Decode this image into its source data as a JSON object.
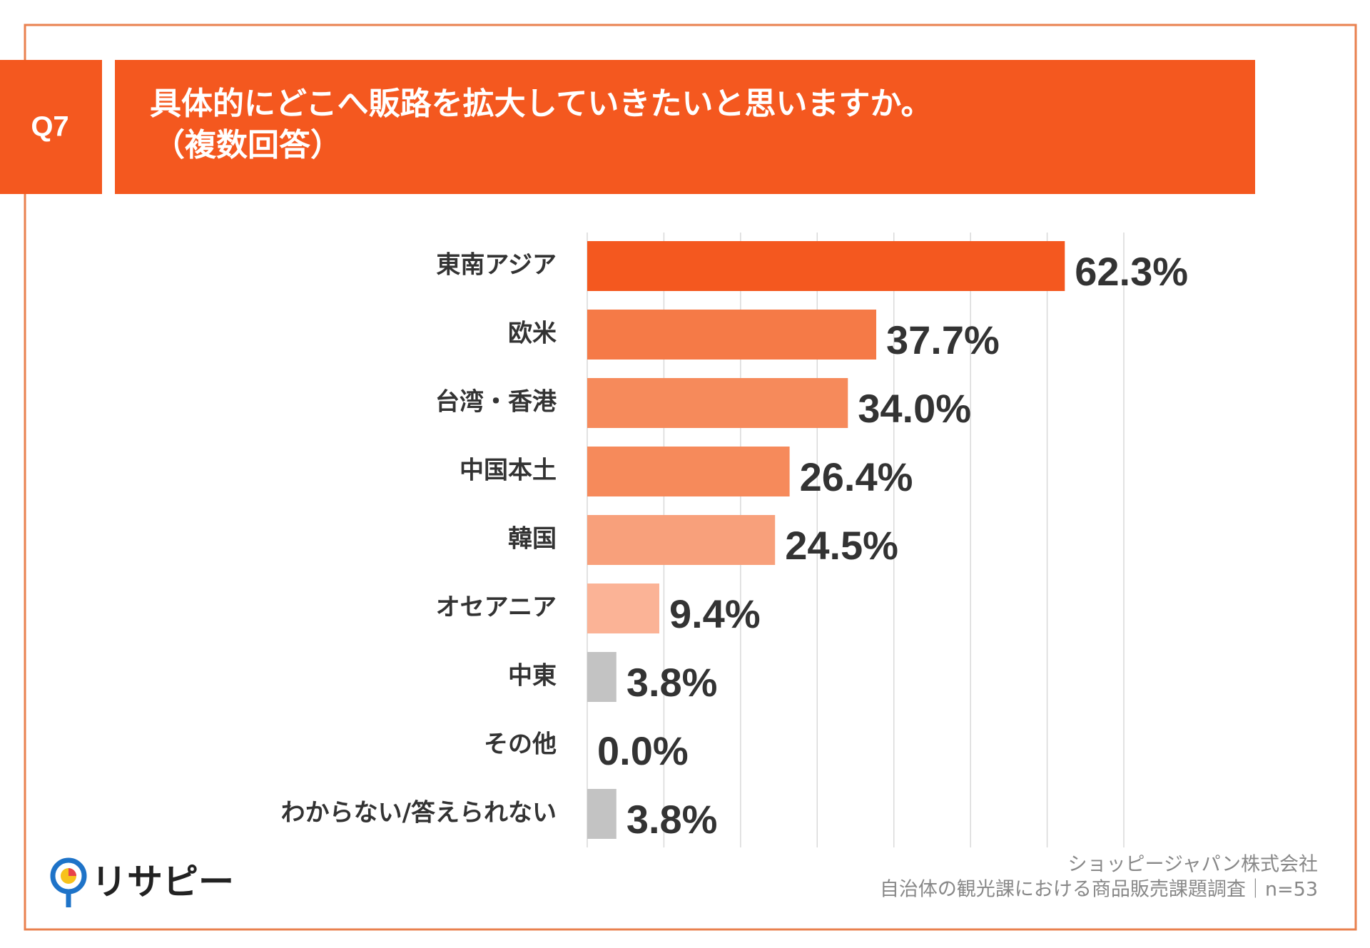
{
  "question_label": "Q7",
  "chart_data": {
    "type": "hbar",
    "title": "具体的にどこへ販路を拡大していきたいと思いますか。",
    "subtitle": "（複数回答）",
    "categories": [
      "東南アジア",
      "欧米",
      "台湾・香港",
      "中国本土",
      "韓国",
      "オセアニア",
      "中東",
      "その他",
      "わからない/答えられない"
    ],
    "values": [
      62.3,
      37.7,
      34.0,
      26.4,
      24.5,
      9.4,
      3.8,
      0.0,
      3.8
    ],
    "value_labels": [
      "62.3%",
      "37.7%",
      "34.0%",
      "26.4%",
      "24.5%",
      "9.4%",
      "3.8%",
      "0.0%",
      "3.8%"
    ],
    "colors": [
      "#f4581f",
      "#f57a47",
      "#f68a5b",
      "#f68a5b",
      "#f8a07b",
      "#fbb396",
      "#c3c3c3",
      "#c3c3c3",
      "#c3c3c3"
    ],
    "xlim": [
      0,
      70
    ],
    "xticks": [
      0,
      10,
      20,
      30,
      40,
      50,
      60,
      70
    ],
    "grid": true
  },
  "footer": {
    "company": "ショッピージャパン株式会社",
    "source": "自治体の観光課における商品販売課題調査｜n=53",
    "logo": "リサピー"
  }
}
